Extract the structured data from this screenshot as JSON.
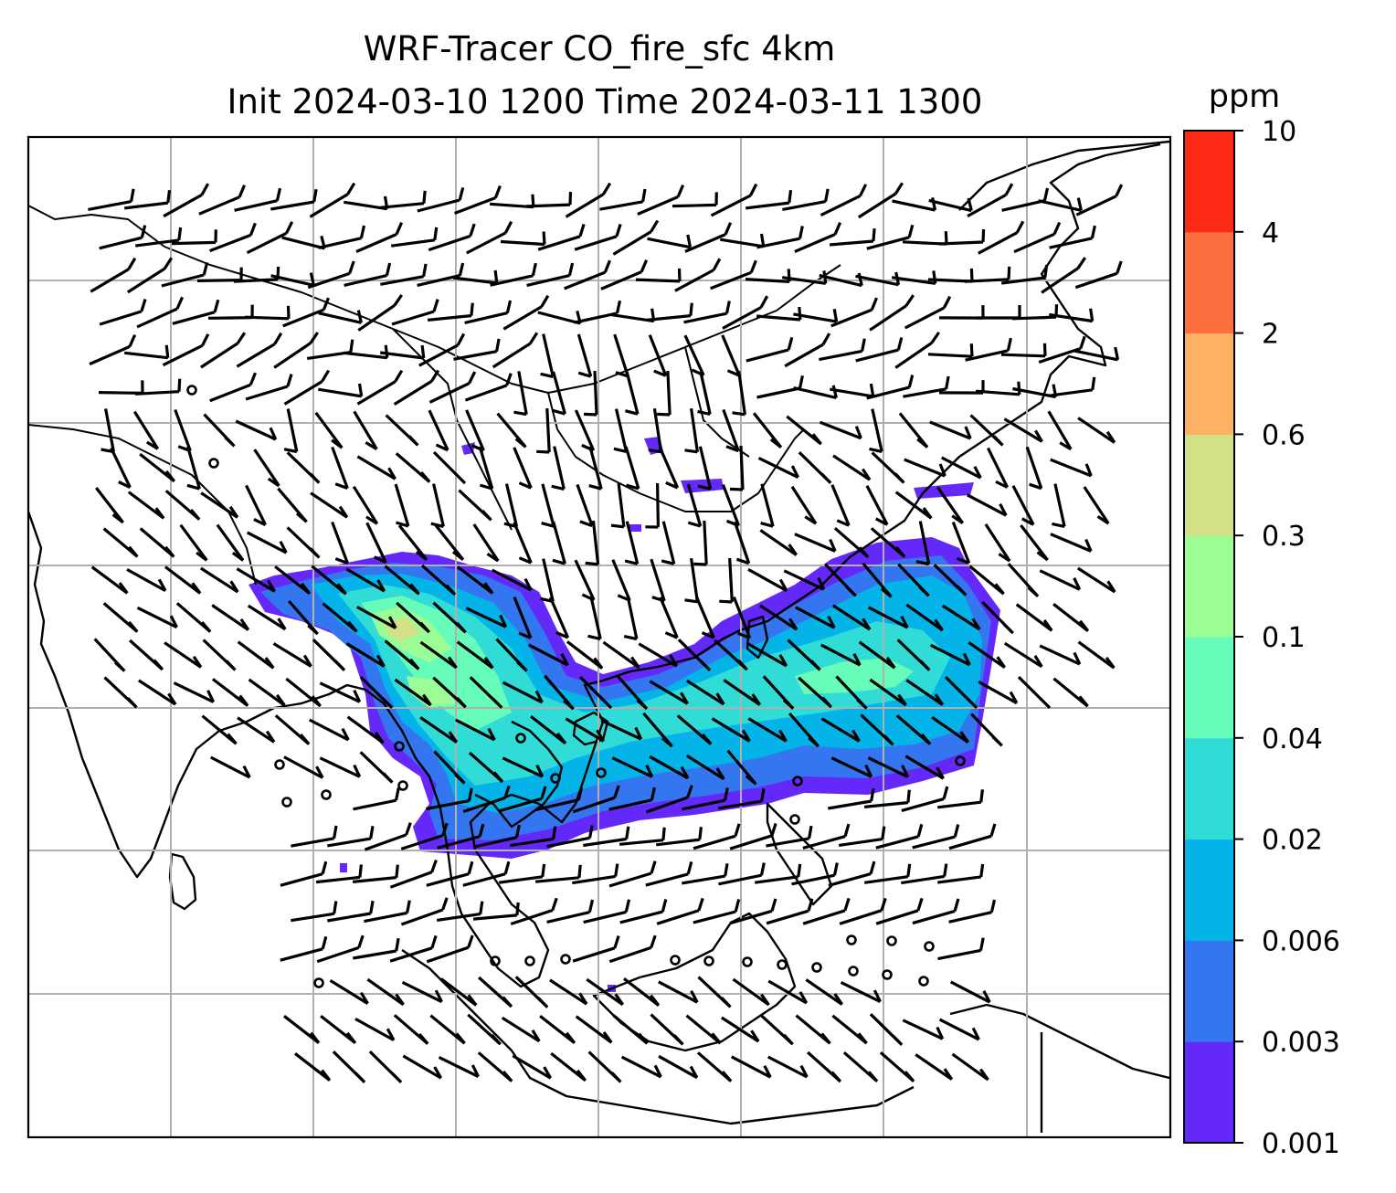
{
  "title": {
    "line1": "WRF-Tracer CO_fire_sfc 4km",
    "line2": "Init 2024-03-10 1200 Time 2024-03-11 1300"
  },
  "colorbar": {
    "unit": "ppm",
    "levels": [
      "0.001",
      "0.003",
      "0.006",
      "0.02",
      "0.04",
      "0.1",
      "0.3",
      "0.6",
      "2",
      "4",
      "10"
    ],
    "colors": [
      "#6429f8",
      "#3376f0",
      "#04b4e9",
      "#30dcd5",
      "#68fcbb",
      "#9cfc96",
      "#d3e088",
      "#fcb164",
      "#fd6f3e",
      "#fe2a18"
    ]
  },
  "map": {
    "field": "CO_fire_sfc",
    "gridlines": true,
    "wind_barbs": true,
    "background": "#ffffff",
    "coastline_color": "#000000",
    "grid_color": "#b0b0b0"
  }
}
